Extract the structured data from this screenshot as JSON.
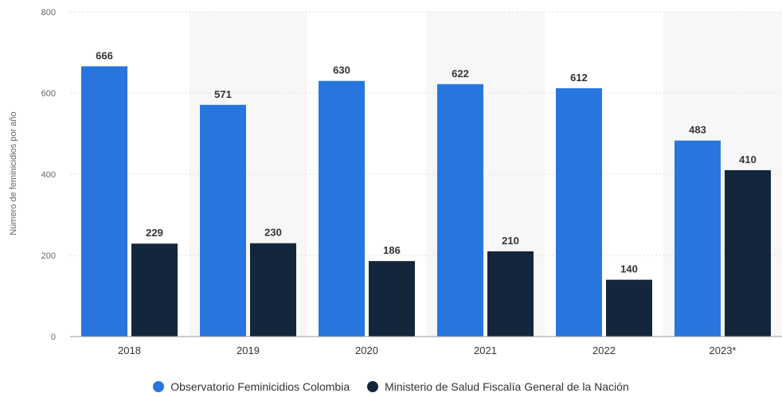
{
  "chart_data": {
    "type": "bar",
    "categories": [
      "2018",
      "2019",
      "2020",
      "2021",
      "2022",
      "2023*"
    ],
    "series": [
      {
        "name": "Observatorio Feminicidios Colombia",
        "values": [
          666,
          571,
          630,
          622,
          612,
          483
        ],
        "color": "#2876DD"
      },
      {
        "name": "Ministerio de Salud Fiscalía General de la Nación",
        "values": [
          229,
          230,
          186,
          210,
          140,
          410
        ],
        "color": "#13263B"
      }
    ],
    "ylabel": "Número de feminicidios por año",
    "xlabel": "",
    "ylim": [
      0,
      800
    ],
    "yticks": [
      0,
      200,
      400,
      600,
      800
    ],
    "grid": true,
    "legend_position": "bottom"
  }
}
